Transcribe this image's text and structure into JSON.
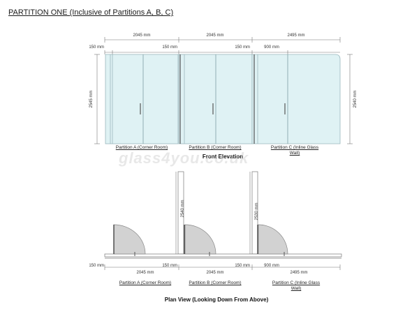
{
  "title": "PARTITION ONE (Inclusive of Partitions A, B, C)",
  "watermark": "glass4you.co.uk",
  "front_elevation": {
    "caption": "Front Elevation",
    "dims_top": [
      "2045 mm",
      "2045 mm",
      "2495 mm"
    ],
    "dims_sub": [
      "150 mm",
      "150 mm",
      "150 mm",
      "900 mm"
    ],
    "height_left": "2545 mm",
    "height_right": "2540 mm",
    "partitions": [
      {
        "label": "Partition A (Corner Room)"
      },
      {
        "label": "Partition B (Corner Room)"
      },
      {
        "label": "Partition C (Inline Glass Wall)"
      }
    ]
  },
  "plan_view": {
    "caption": "Plan View (Looking Down From Above)",
    "dims_bottom": [
      "2045 mm",
      "2045 mm",
      "2495 mm"
    ],
    "dims_side": [
      "150 mm",
      "150 mm",
      "150 mm",
      "900 mm"
    ],
    "wall_heights": [
      "2540 mm",
      "2530 mm"
    ],
    "partitions": [
      {
        "label": "Partition A (Corner Room)"
      },
      {
        "label": "Partition B (Corner Room)"
      },
      {
        "label": "Partition C (Inline Glass Wall)"
      }
    ]
  },
  "colors": {
    "glass": "#dff2f4",
    "glass_edge": "#9ab7bc",
    "door_swing": "#d2d2d2",
    "handle": "#666666",
    "line": "#777777"
  }
}
